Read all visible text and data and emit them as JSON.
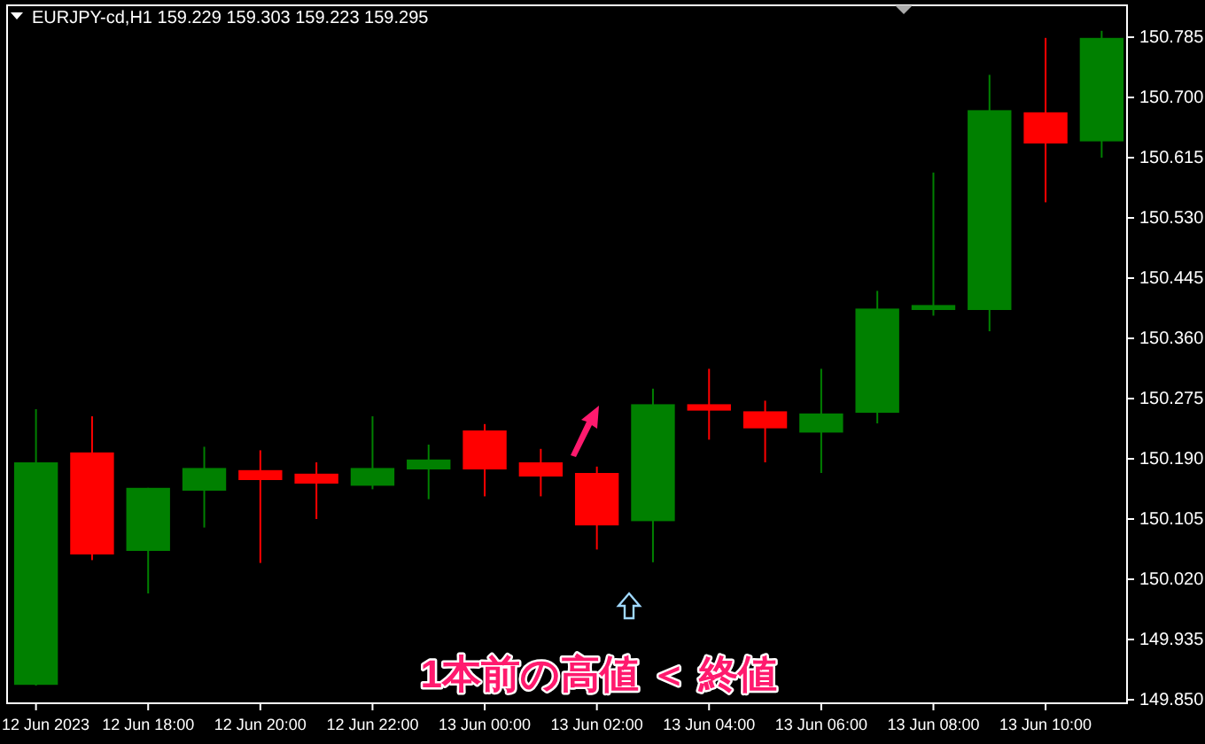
{
  "chart_data": {
    "type": "candlestick",
    "title": "EURJPY-cd,H1  159.229 159.303 159.223 159.295",
    "categories": [
      "12 Jun 2023",
      null,
      "12 Jun 18:00",
      null,
      "12 Jun 20:00",
      null,
      "12 Jun 22:00",
      null,
      "13 Jun 00:00",
      null,
      "13 Jun 02:00",
      null,
      "13 Jun 04:00",
      null,
      "13 Jun 06:00",
      null,
      "13 Jun 08:00",
      null,
      "13 Jun 10:00",
      null
    ],
    "ohlc": [
      [
        149.871,
        150.26,
        149.87,
        150.185
      ],
      [
        150.199,
        150.25,
        150.047,
        150.055
      ],
      [
        150.06,
        150.149,
        150.0,
        150.149
      ],
      [
        150.145,
        150.207,
        150.093,
        150.177
      ],
      [
        150.174,
        150.202,
        150.043,
        150.16
      ],
      [
        150.169,
        150.185,
        150.105,
        150.155
      ],
      [
        150.152,
        150.25,
        150.147,
        150.177
      ],
      [
        150.175,
        150.21,
        150.133,
        150.189
      ],
      [
        150.23,
        150.239,
        150.137,
        150.175
      ],
      [
        150.185,
        150.204,
        150.137,
        150.165
      ],
      [
        150.17,
        150.179,
        150.062,
        150.096
      ],
      [
        150.102,
        150.289,
        150.044,
        150.267
      ],
      [
        150.267,
        150.317,
        150.217,
        150.258
      ],
      [
        150.257,
        150.272,
        150.185,
        150.233
      ],
      [
        150.227,
        150.317,
        150.17,
        150.254
      ],
      [
        150.255,
        150.427,
        150.24,
        150.402
      ],
      [
        150.4,
        150.594,
        150.392,
        150.407
      ],
      [
        150.4,
        150.732,
        150.37,
        150.682
      ],
      [
        150.679,
        150.784,
        150.552,
        150.635
      ],
      [
        150.638,
        150.794,
        150.615,
        150.784
      ]
    ],
    "colors": [
      "#008000",
      "#ff0000",
      "#008000",
      "#008000",
      "#ff0000",
      "#ff0000",
      "#008000",
      "#008000",
      "#ff0000",
      "#ff0000",
      "#ff0000",
      "#008000",
      "#ff0000",
      "#ff0000",
      "#008000",
      "#008000",
      "#008000",
      "#008000",
      "#ff0000",
      "#008000"
    ],
    "ylim": [
      149.845,
      150.83
    ],
    "yticks": [
      {
        "value": 149.85,
        "label": "149.850"
      },
      149.935,
      {
        "value": 150.02,
        "label": "150.020"
      },
      150.105,
      {
        "value": 150.19,
        "label": "150.190"
      },
      150.275,
      {
        "value": 150.36,
        "label": "150.360"
      },
      150.445,
      {
        "value": 150.53,
        "label": "150.530"
      },
      150.615,
      {
        "value": 150.7,
        "label": "150.700"
      },
      150.785
    ],
    "grid": false,
    "annotations": [
      "1本前の高値 ＜ 終値"
    ]
  }
}
